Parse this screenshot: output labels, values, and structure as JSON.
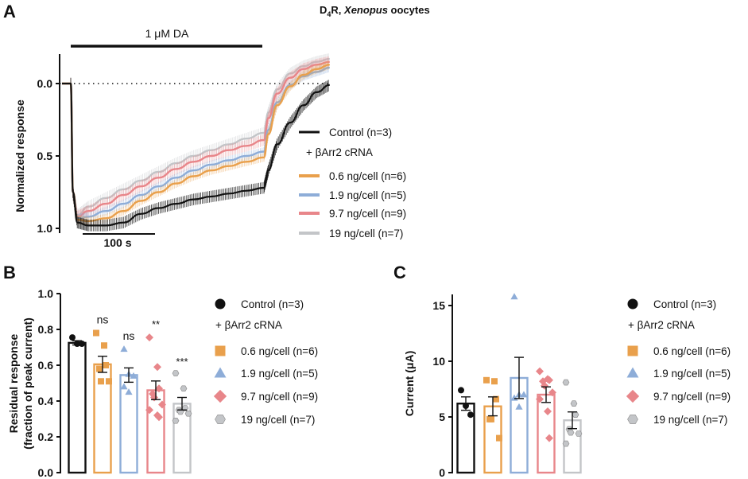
{
  "figure_title": {
    "prefix": "D",
    "subscript": "4",
    "suffix": "R, ",
    "italic": "Xenopus",
    "rest": " oocytes"
  },
  "colors": {
    "control": "#111111",
    "d06": "#E9A04C",
    "d19": "#8EADD8",
    "d97": "#E8868A",
    "d19ng": "#C3C5C8"
  },
  "chart_data": [
    {
      "panel": "A",
      "type": "line",
      "title": "",
      "annotation_drug": "1 μM DA",
      "scale_bar_label": "100 s",
      "ylabel": "Normalized response",
      "yticks": [
        "0.0",
        "0.5",
        "1.0"
      ],
      "ylim": [
        -0.2,
        1.02
      ],
      "y_inverted": true,
      "reference_line": 0.0,
      "x_unit": "s",
      "drug_application": [
        0,
        440
      ],
      "x": [
        -20,
        0,
        5,
        15,
        40,
        80,
        120,
        160,
        200,
        240,
        280,
        320,
        360,
        400,
        440,
        450,
        470,
        500,
        530,
        560,
        590
      ],
      "series": [
        {
          "key": "control",
          "name": "Control (n=3)",
          "values": [
            0.0,
            0.0,
            0.75,
            0.96,
            0.98,
            0.98,
            0.96,
            0.9,
            0.86,
            0.83,
            0.8,
            0.78,
            0.76,
            0.74,
            0.72,
            0.6,
            0.42,
            0.27,
            0.15,
            0.06,
            0.01
          ],
          "sem": 0.04
        },
        {
          "key": "d06",
          "name": "0.6 ng/cell (n=6)",
          "values": [
            0.0,
            0.0,
            0.75,
            0.94,
            0.95,
            0.93,
            0.88,
            0.81,
            0.75,
            0.69,
            0.64,
            0.6,
            0.57,
            0.54,
            0.51,
            0.35,
            0.15,
            0.02,
            -0.06,
            -0.1,
            -0.13
          ],
          "sem": 0.03
        },
        {
          "key": "d19",
          "name": "1.9 ng/cell (n=5)",
          "values": [
            0.0,
            0.0,
            0.75,
            0.93,
            0.92,
            0.88,
            0.83,
            0.77,
            0.71,
            0.65,
            0.6,
            0.56,
            0.53,
            0.5,
            0.47,
            0.32,
            0.13,
            0.01,
            -0.05,
            -0.08,
            -0.11
          ],
          "sem": 0.03
        },
        {
          "key": "d97",
          "name": "9.7 ng/cell (n=9)",
          "values": [
            0.0,
            0.0,
            0.75,
            0.92,
            0.88,
            0.83,
            0.77,
            0.71,
            0.65,
            0.59,
            0.54,
            0.5,
            0.46,
            0.43,
            0.39,
            0.24,
            0.07,
            -0.04,
            -0.1,
            -0.13,
            -0.15
          ],
          "sem": 0.04
        },
        {
          "key": "d19ng",
          "name": "19 ng/cell  (n=7)",
          "values": [
            0.0,
            0.0,
            0.75,
            0.91,
            0.85,
            0.79,
            0.73,
            0.67,
            0.61,
            0.55,
            0.5,
            0.46,
            0.42,
            0.38,
            0.34,
            0.2,
            0.04,
            -0.07,
            -0.12,
            -0.15,
            -0.17
          ],
          "sem": 0.04
        }
      ],
      "legend": {
        "position": "right",
        "header": "+ βArr2 cRNA",
        "items": [
          "Control (n=3)",
          "0.6 ng/cell (n=6)",
          "1.9 ng/cell (n=5)",
          "9.7 ng/cell (n=9)",
          "19 ng/cell  (n=7)"
        ]
      }
    },
    {
      "panel": "B",
      "type": "bar",
      "ylabel_line1": "Residual response",
      "ylabel_line2": "(fraction of peak current)",
      "ylim": [
        0,
        1.0
      ],
      "yticks": [
        "0.0",
        "0.2",
        "0.4",
        "0.6",
        "0.8",
        "1.0"
      ],
      "categories": [
        "Control (n=3)",
        "0.6 ng/cell (n=6)",
        "1.9 ng/cell (n=5)",
        "9.7 ng/cell (n=9)",
        "19 ng/cell  (n=7)"
      ],
      "keys": [
        "control",
        "d06",
        "d19",
        "d97",
        "d19ng"
      ],
      "markers": [
        "circle",
        "square",
        "triangle",
        "diamond",
        "hexagon"
      ],
      "values": [
        0.725,
        0.605,
        0.545,
        0.46,
        0.385
      ],
      "sem": [
        0.012,
        0.045,
        0.04,
        0.052,
        0.035
      ],
      "points": [
        [
          0.755,
          0.72,
          0.72
        ],
        [
          0.78,
          0.71,
          0.6,
          0.58,
          0.51,
          0.51
        ],
        [
          0.69,
          0.55,
          0.54,
          0.48,
          0.45
        ],
        [
          0.755,
          0.59,
          0.47,
          0.44,
          0.42,
          0.38,
          0.35,
          0.32,
          0.31
        ],
        [
          0.555,
          0.47,
          0.36,
          0.35,
          0.34,
          0.33,
          0.29
        ]
      ],
      "significance": [
        "",
        "ns",
        "ns",
        "**",
        "***"
      ],
      "legend": {
        "position": "right",
        "header": "+ βArr2 cRNA",
        "items": [
          "Control (n=3)",
          "0.6 ng/cell (n=6)",
          "1.9 ng/cell (n=5)",
          "9.7 ng/cell (n=9)",
          "19 ng/cell  (n=7)"
        ]
      }
    },
    {
      "panel": "C",
      "type": "bar",
      "ylabel": "Current (μA)",
      "ylim": [
        0,
        16
      ],
      "yticks": [
        "0",
        "5",
        "10",
        "15"
      ],
      "categories": [
        "Control (n=3)",
        "0.6 ng/cell (n=6)",
        "1.9 ng/cell (n=5)",
        "9.7 ng/cell (n=9)",
        "19 ng/cell  (n=7)"
      ],
      "keys": [
        "control",
        "d06",
        "d19",
        "d97",
        "d19ng"
      ],
      "markers": [
        "circle",
        "square",
        "triangle",
        "diamond",
        "hexagon"
      ],
      "values": [
        6.2,
        5.95,
        8.5,
        7.0,
        4.7
      ],
      "sem": [
        0.6,
        0.85,
        1.85,
        0.7,
        0.75
      ],
      "points": [
        [
          7.4,
          6.0,
          5.2
        ],
        [
          8.3,
          8.2,
          6.6,
          4.8,
          4.8,
          3.1
        ],
        [
          15.8,
          7.0,
          7.0,
          6.7,
          5.9
        ],
        [
          9.1,
          8.4,
          8.3,
          8.2,
          7.8,
          7.2,
          6.6,
          5.5,
          3.1
        ],
        [
          8.1,
          6.2,
          5.2,
          3.9,
          3.6,
          3.5,
          2.6
        ]
      ],
      "legend": {
        "position": "right",
        "header": "+ βArr2 cRNA",
        "items": [
          "Control (n=3)",
          "0.6 ng/cell (n=6)",
          "1.9 ng/cell (n=5)",
          "9.7 ng/cell (n=9)",
          "19 ng/cell  (n=7)"
        ]
      }
    }
  ],
  "panel_labels": [
    "A",
    "B",
    "C"
  ]
}
